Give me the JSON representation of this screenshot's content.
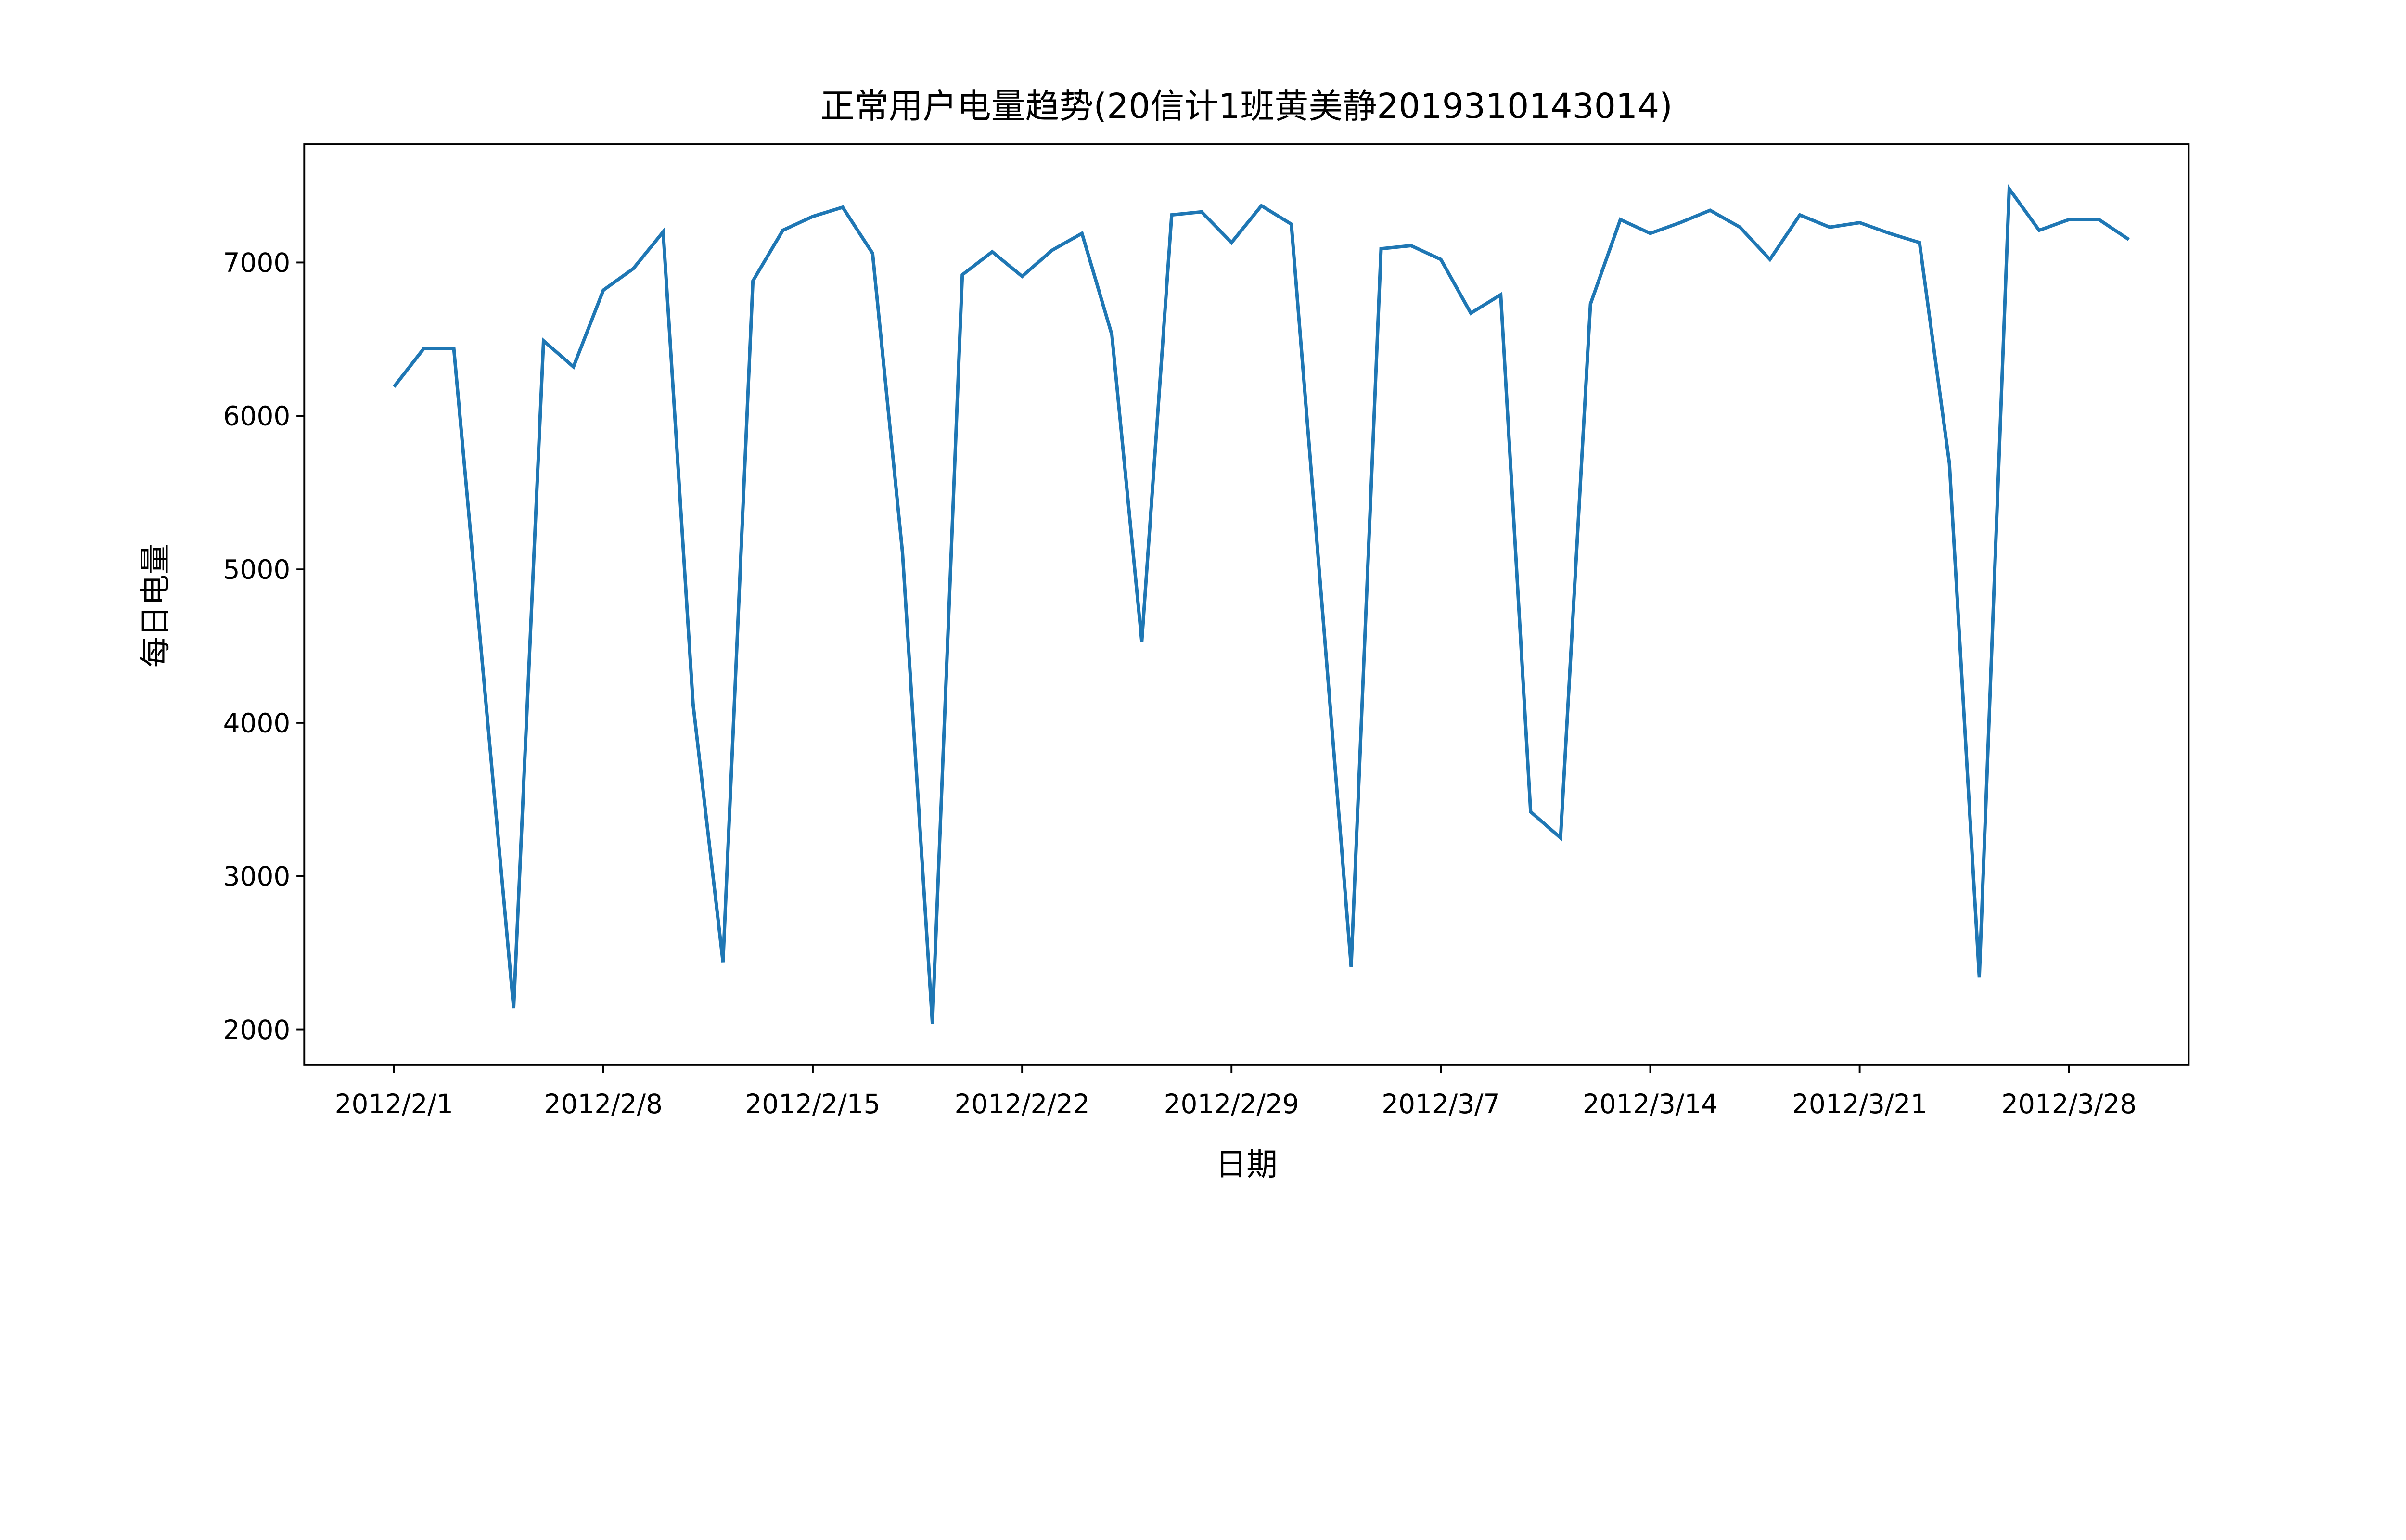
{
  "chart_data": {
    "type": "line",
    "title": "正常用户电量趋势(20信计1班黄美静2019310143014)",
    "xlabel": "日期",
    "ylabel": "每日电量",
    "start_date": "2012-02-01",
    "x_ticks": [
      "2012/2/1",
      "2012/2/8",
      "2012/2/15",
      "2012/2/22",
      "2012/2/29",
      "2012/3/7",
      "2012/3/14",
      "2012/3/21",
      "2012/3/28"
    ],
    "y_ticks": [
      2000,
      3000,
      4000,
      5000,
      6000,
      7000
    ],
    "ylim": [
      1770,
      7770
    ],
    "xlim": [
      "2012-01-29",
      "2012-04-01"
    ],
    "grid": false,
    "color": "#1f77b4",
    "series": [
      {
        "values": [
          6190,
          6440,
          6440,
          4290,
          2140,
          6490,
          6320,
          6820,
          6960,
          7200,
          4120,
          2440,
          6880,
          7210,
          7300,
          7360,
          7060,
          5110,
          2040,
          6920,
          7070,
          6910,
          7080,
          7190,
          6530,
          4530,
          7310,
          7330,
          7130,
          7370,
          7250,
          4830,
          2410,
          7090,
          7110,
          7020,
          6670,
          6790,
          3420,
          3250,
          6730,
          7280,
          7190,
          7260,
          7340,
          7230,
          7020,
          7310,
          7230,
          7260,
          7190,
          7130,
          5690,
          2340,
          7480,
          7210,
          7280,
          7280,
          7150
        ]
      }
    ]
  }
}
